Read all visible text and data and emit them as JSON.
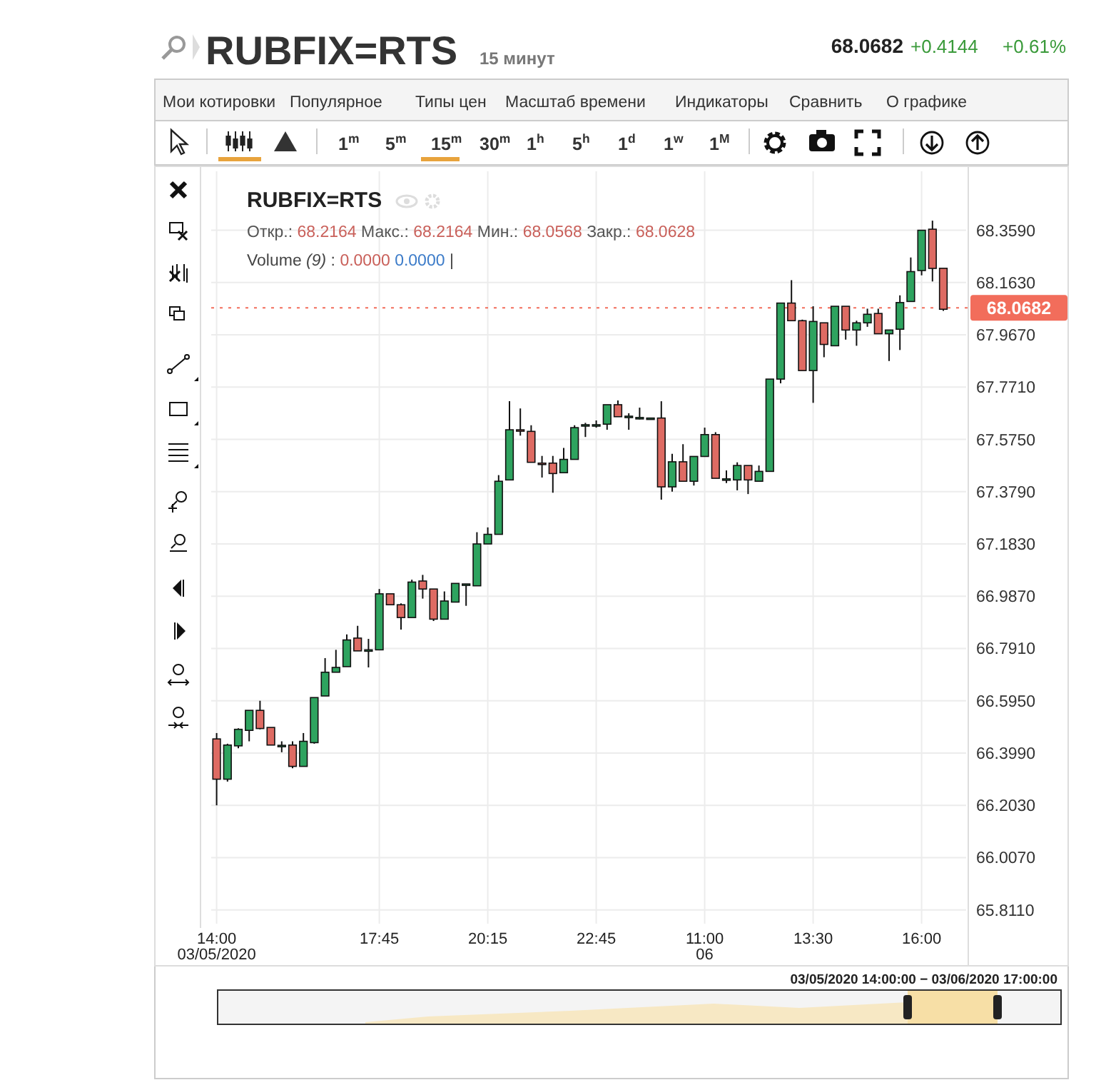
{
  "chart_data": {
    "type": "candlestick",
    "title": "RUBFIX=RTS",
    "subtitle": "15 минут",
    "categories": [
      "14:00\n03/05/2020",
      null,
      null,
      null,
      null,
      null,
      null,
      null,
      null,
      null,
      null,
      null,
      null,
      null,
      null,
      "17:45",
      null,
      null,
      null,
      null,
      null,
      null,
      null,
      null,
      null,
      "20:15",
      null,
      null,
      null,
      null,
      null,
      null,
      null,
      null,
      null,
      "22:45",
      null,
      null,
      null,
      null,
      null,
      null,
      null,
      null,
      null,
      "11:00\n06",
      null,
      null,
      null,
      null,
      null,
      null,
      null,
      null,
      null,
      "13:30",
      null,
      null,
      null,
      null,
      null,
      null,
      null,
      null,
      null,
      "16:00",
      null,
      null
    ],
    "ohlc": [
      [
        66.452,
        66.474,
        66.203,
        66.301
      ],
      [
        66.301,
        66.434,
        66.292,
        66.429
      ],
      [
        66.426,
        66.492,
        66.417,
        66.488
      ],
      [
        66.484,
        66.559,
        66.443,
        66.559
      ],
      [
        66.559,
        66.595,
        66.488,
        66.491
      ],
      [
        66.495,
        66.495,
        66.429,
        66.429
      ],
      [
        66.426,
        66.443,
        66.402,
        66.428
      ],
      [
        66.429,
        66.443,
        66.342,
        66.349
      ],
      [
        66.349,
        66.474,
        66.349,
        66.443
      ],
      [
        66.438,
        66.607,
        66.434,
        66.607
      ],
      [
        66.613,
        66.755,
        66.613,
        66.702
      ],
      [
        66.702,
        66.786,
        66.702,
        66.72
      ],
      [
        66.723,
        66.844,
        66.723,
        66.823
      ],
      [
        66.83,
        66.876,
        66.782,
        66.782
      ],
      [
        66.784,
        66.827,
        66.72,
        66.786
      ],
      [
        66.786,
        67.014,
        66.786,
        66.996
      ],
      [
        66.996,
        66.996,
        66.955,
        66.955
      ],
      [
        66.955,
        66.96,
        66.862,
        66.907
      ],
      [
        66.907,
        67.049,
        66.907,
        67.04
      ],
      [
        67.044,
        67.067,
        66.978,
        67.014
      ],
      [
        67.014,
        67.014,
        66.894,
        66.901
      ],
      [
        66.901,
        67.005,
        66.901,
        66.969
      ],
      [
        66.965,
        67.035,
        66.965,
        67.035
      ],
      [
        67.031,
        67.033,
        66.951,
        67.033
      ],
      [
        67.026,
        67.227,
        67.026,
        67.183
      ],
      [
        67.183,
        67.245,
        67.183,
        67.219
      ],
      [
        67.219,
        67.441,
        67.219,
        67.418
      ],
      [
        67.423,
        67.718,
        67.423,
        67.611
      ],
      [
        67.611,
        67.691,
        67.589,
        67.609
      ],
      [
        67.605,
        67.628,
        67.489,
        67.489
      ],
      [
        67.486,
        67.513,
        67.432,
        67.484
      ],
      [
        67.486,
        67.513,
        67.375,
        67.447
      ],
      [
        67.45,
        67.543,
        67.45,
        67.5
      ],
      [
        67.5,
        67.628,
        67.5,
        67.619
      ],
      [
        67.628,
        67.637,
        67.584,
        67.63
      ],
      [
        67.628,
        67.646,
        67.619,
        67.63
      ],
      [
        67.632,
        67.705,
        67.611,
        67.705
      ],
      [
        67.705,
        67.721,
        67.66,
        67.66
      ],
      [
        67.66,
        67.673,
        67.611,
        67.662
      ],
      [
        67.655,
        67.694,
        67.65,
        67.657
      ],
      [
        67.655,
        67.655,
        67.655,
        67.655
      ],
      [
        67.655,
        67.718,
        67.349,
        67.397
      ],
      [
        67.397,
        67.521,
        67.379,
        67.491
      ],
      [
        67.491,
        67.557,
        67.418,
        67.418
      ],
      [
        67.418,
        67.511,
        67.402,
        67.511
      ],
      [
        67.511,
        67.619,
        67.511,
        67.593
      ],
      [
        67.593,
        67.602,
        67.429,
        67.429
      ],
      [
        67.425,
        67.459,
        67.411,
        67.427
      ],
      [
        67.423,
        67.489,
        67.384,
        67.477
      ],
      [
        67.477,
        67.477,
        67.37,
        67.423
      ],
      [
        67.418,
        67.477,
        67.418,
        67.455
      ],
      [
        67.455,
        67.801,
        67.455,
        67.801
      ],
      [
        67.801,
        68.086,
        67.785,
        68.086
      ],
      [
        68.086,
        68.172,
        68.02,
        68.02
      ],
      [
        68.02,
        68.024,
        67.833,
        67.833
      ],
      [
        67.833,
        68.074,
        67.712,
        68.017
      ],
      [
        68.012,
        68.012,
        67.883,
        67.931
      ],
      [
        67.926,
        68.074,
        67.926,
        68.074
      ],
      [
        68.074,
        68.074,
        67.949,
        67.985
      ],
      [
        67.985,
        68.02,
        67.926,
        68.012
      ],
      [
        68.012,
        68.065,
        67.997,
        68.044
      ],
      [
        68.047,
        68.065,
        67.971,
        67.971
      ],
      [
        67.971,
        67.985,
        67.869,
        67.985
      ],
      [
        67.988,
        68.115,
        67.91,
        68.088
      ],
      [
        68.092,
        68.257,
        68.092,
        68.204
      ],
      [
        68.208,
        68.359,
        68.19,
        68.359
      ],
      [
        68.363,
        68.395,
        68.167,
        68.216
      ],
      [
        68.2164,
        68.2164,
        68.0568,
        68.0628
      ]
    ],
    "ylim": [
      65.77,
      68.58
    ],
    "yticks": [
      {
        "value": 65.811,
        "label": "65.8110"
      },
      {
        "value": 66.007,
        "label": "66.0070"
      },
      {
        "value": 66.203,
        "label": "66.2030"
      },
      {
        "value": 66.399,
        "label": "66.3990"
      },
      {
        "value": 66.595,
        "label": "66.5950"
      },
      {
        "value": 66.791,
        "label": "66.7910"
      },
      {
        "value": 66.987,
        "label": "66.9870"
      },
      {
        "value": 67.183,
        "label": "67.1830"
      },
      {
        "value": 67.379,
        "label": "67.3790"
      },
      {
        "value": 67.575,
        "label": "67.5750"
      },
      {
        "value": 67.771,
        "label": "67.7710"
      },
      {
        "value": 67.967,
        "label": "67.9670"
      },
      {
        "value": 68.163,
        "label": "68.1630"
      },
      {
        "value": 68.359,
        "label": "68.3590"
      }
    ],
    "grid": true,
    "ref_lines": [
      {
        "axis": "y",
        "value": 68.0682,
        "label": "68.0682",
        "color": "#f26d5b",
        "line_style": "dotted"
      }
    ],
    "annotations": [
      "68.0682",
      "+0.4144",
      "+0.61%",
      "Мои котировки",
      "Популярное",
      "Типы цен",
      "Масштаб времени",
      "Индикаторы",
      "Сравнить",
      "О графике",
      "1$^{m}$",
      "5$^{m}$",
      "15$^{m}$",
      "30$^{m}$",
      "1$^{h}$",
      "5$^{h}$",
      "1$^{d}$",
      "1$^{w}$",
      "1$^{M}$",
      "Откр.: 68.2164 Макс.: 68.2164 Мин.: 68.0568 Закр.: 68.0628",
      "Volume (9) : 0.0000 0.0000 |",
      "03/05/2020 14:00:00 − 03/06/2020 17:00:00"
    ]
  }
}
